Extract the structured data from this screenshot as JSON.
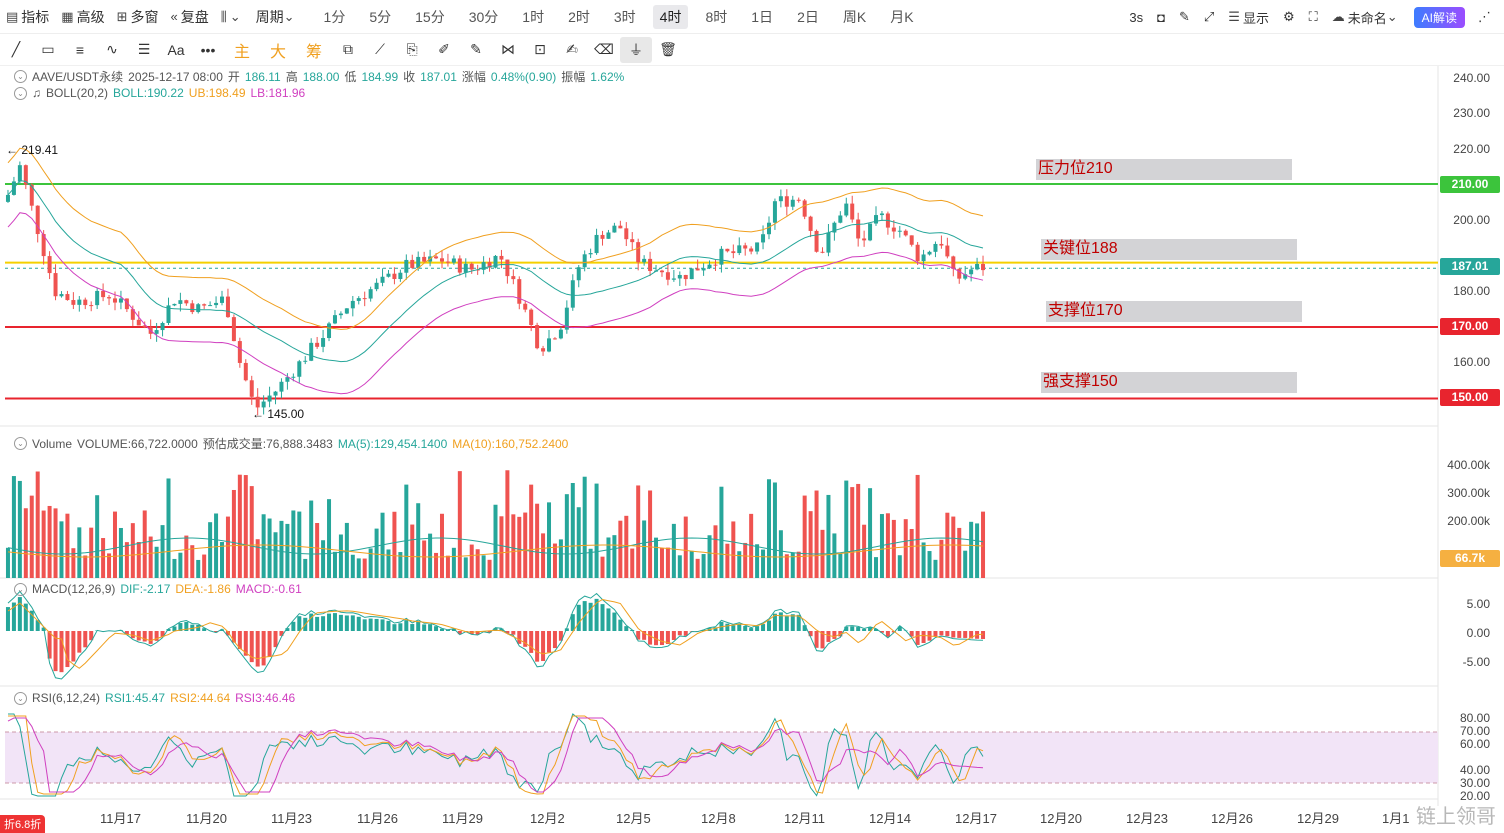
{
  "toolbar": {
    "indicator": "指标",
    "advanced": "高级",
    "multi_window": "多窗",
    "replay": "复盘",
    "chart_type_icon": "candles-icon",
    "period_menu": "周期",
    "periods": [
      "1分",
      "5分",
      "15分",
      "30分",
      "1时",
      "2时",
      "3时",
      "4时",
      "8时",
      "1日",
      "2日",
      "周K",
      "月K"
    ],
    "active_period": "4时",
    "right": {
      "refresh": "3s",
      "display": "显示",
      "layout_name": "未命名",
      "ai_button": "AI解读"
    }
  },
  "drawbar": {
    "tabs": [
      "主",
      "大",
      "筹"
    ]
  },
  "main_legend": {
    "symbol": "AAVE/USDT永续",
    "datetime": "2025-12-17 08:00",
    "open_label": "开",
    "open": "186.11",
    "high_label": "高",
    "high": "188.00",
    "low_label": "低",
    "low": "184.99",
    "close_label": "收",
    "close": "187.01",
    "change_label": "涨幅",
    "change": "0.48%(0.90)",
    "amp_label": "振幅",
    "amp": "1.62%"
  },
  "boll_legend": {
    "name": "BOLL(20,2)",
    "mid": "BOLL:190.22",
    "ub": "UB:198.49",
    "lb": "LB:181.96"
  },
  "vol_legend": {
    "name": "Volume",
    "vol": "VOLUME:66,722.0000",
    "est": "预估成交量:76,888.3483",
    "ma5": "MA(5):129,454.1400",
    "ma10": "MA(10):160,752.2400"
  },
  "macd_legend": {
    "name": "MACD(12,26,9)",
    "dif": "DIF:-2.17",
    "dea": "DEA:-1.86",
    "macd": "MACD:-0.61"
  },
  "rsi_legend": {
    "name": "RSI(6,12,24)",
    "rsi1": "RSI1:45.47",
    "rsi2": "RSI2:44.64",
    "rsi3": "RSI3:46.46"
  },
  "price_axis": [
    "240.00",
    "230.00",
    "220.00",
    "200.00",
    "180.00",
    "160.00"
  ],
  "vol_axis": [
    "400.00k",
    "300.00k",
    "200.00k"
  ],
  "macd_axis": [
    "5.00",
    "0.00",
    "-5.00"
  ],
  "rsi_axis": [
    "80.00",
    "70.00",
    "60.00",
    "40.00",
    "30.00",
    "20.00"
  ],
  "price_tags": {
    "p210": "210.00",
    "current": "187.01",
    "p170": "170.00",
    "p150": "150.00",
    "vol_current": "66.7k"
  },
  "zones": {
    "resistance": "压力位210",
    "key": "关键位188",
    "support": "支撑位170",
    "strong": "强支撑150"
  },
  "extremes": {
    "high": "219.41",
    "low": "145.00"
  },
  "dates": [
    "11月17",
    "11月20",
    "11月23",
    "11月26",
    "11月29",
    "12月2",
    "12月5",
    "12月8",
    "12月11",
    "12月14",
    "12月17",
    "12月20",
    "12月23",
    "12月26",
    "12月29",
    "1月1"
  ],
  "watermark": "链上领哥",
  "discount": "折6.8折",
  "colors": {
    "up": "#26a69a",
    "down": "#ef5350",
    "resistance": "#3cc43c",
    "key": "#f5d000",
    "support": "#e8242e"
  }
}
